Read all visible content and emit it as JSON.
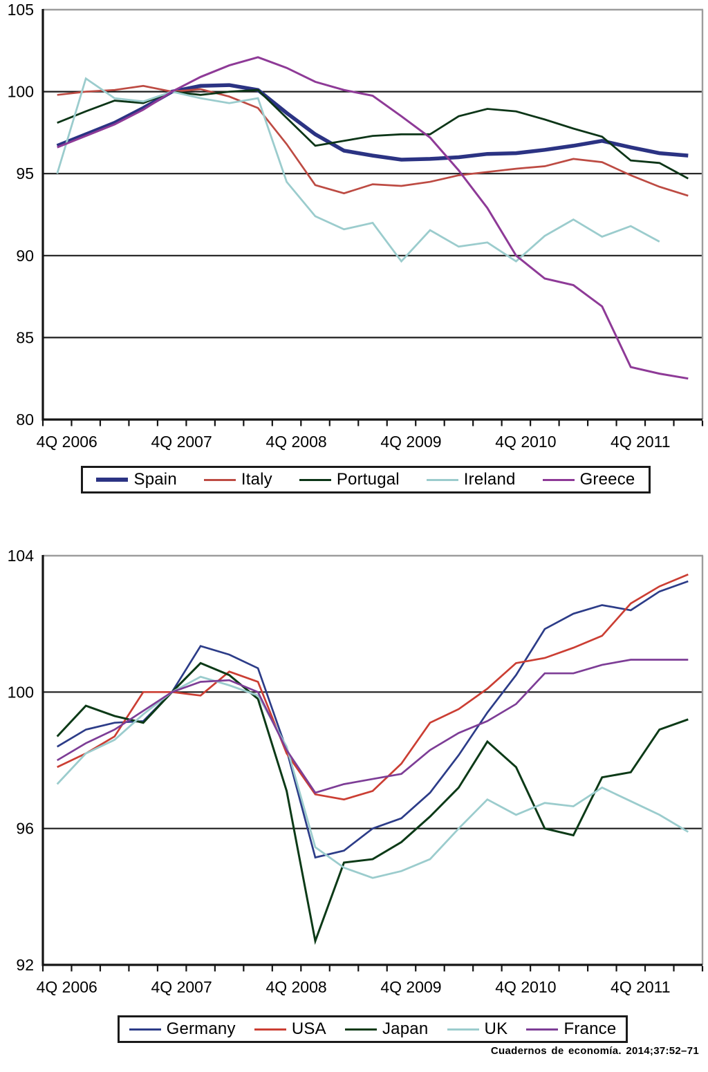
{
  "citation": "Cuadernos de economía. 2014;37:52–71",
  "colors": {
    "gridline": "#1c1c1c",
    "axis": "#141414",
    "chart_border": "#9c9c9c",
    "text": "#000000"
  },
  "chart_data": [
    {
      "id": "top",
      "type": "line",
      "title": "",
      "xlabel": "",
      "ylabel": "",
      "grid": "horizontal",
      "legend_position": "bottom",
      "categories": [
        "4Q 2006",
        "1Q 2007",
        "2Q 2007",
        "3Q 2007",
        "4Q 2007",
        "1Q 2008",
        "2Q 2008",
        "3Q 2008",
        "4Q 2008",
        "1Q 2009",
        "2Q 2009",
        "3Q 2009",
        "4Q 2009",
        "1Q 2010",
        "2Q 2010",
        "3Q 2010",
        "4Q 2010",
        "1Q 2011",
        "2Q 2011",
        "3Q 2011",
        "4Q 2011",
        "1Q 2012",
        "2Q 2012"
      ],
      "x_tick_labels": [
        "4Q 2006",
        "4Q 2007",
        "4Q 2008",
        "4Q 2009",
        "4Q 2010",
        "4Q 2011"
      ],
      "x_tick_label_points": [
        0,
        4,
        8,
        12,
        16,
        20
      ],
      "ylim": [
        80,
        105
      ],
      "y_ticks": [
        105,
        100,
        95,
        90,
        85,
        80
      ],
      "y_gridlines": [
        100,
        95,
        90,
        85
      ],
      "series": [
        {
          "name": "Spain",
          "color": "#2b3383",
          "width": 5.5,
          "values": [
            96.7,
            97.4,
            98.1,
            99.0,
            100.0,
            100.35,
            100.4,
            100.1,
            98.7,
            97.4,
            96.4,
            96.1,
            95.85,
            95.9,
            96.0,
            96.2,
            96.25,
            96.45,
            96.7,
            97.0,
            96.6,
            96.25,
            96.1
          ]
        },
        {
          "name": "Italy",
          "color": "#bd4b43",
          "width": 2.7,
          "values": [
            99.8,
            100.0,
            100.1,
            100.35,
            100.0,
            100.15,
            99.7,
            99.0,
            96.8,
            94.3,
            93.8,
            94.35,
            94.25,
            94.5,
            94.9,
            95.1,
            95.3,
            95.45,
            95.9,
            95.7,
            94.9,
            94.2,
            93.65
          ]
        },
        {
          "name": "Portugal",
          "color": "#0c3517",
          "width": 2.8,
          "values": [
            98.1,
            98.8,
            99.45,
            99.3,
            100.0,
            99.8,
            100.0,
            100.1,
            98.4,
            96.7,
            97.0,
            97.3,
            97.4,
            97.4,
            98.5,
            98.95,
            98.8,
            98.3,
            97.75,
            97.25,
            95.8,
            95.65,
            94.7
          ]
        },
        {
          "name": "Ireland",
          "color": "#9bcccd",
          "width": 2.8,
          "values": [
            95.0,
            100.8,
            99.6,
            99.4,
            100.0,
            99.6,
            99.3,
            99.6,
            94.5,
            92.4,
            91.6,
            92.0,
            89.65,
            91.55,
            90.55,
            90.8,
            89.65,
            91.2,
            92.2,
            91.15,
            91.8,
            90.85,
            null
          ]
        },
        {
          "name": "Greece",
          "color": "#8e3a97",
          "width": 3.0,
          "values": [
            96.6,
            97.3,
            98.0,
            98.9,
            100.0,
            100.9,
            101.6,
            102.1,
            101.45,
            100.6,
            100.1,
            99.75,
            98.5,
            97.2,
            95.2,
            92.9,
            90.0,
            88.6,
            88.2,
            86.9,
            83.2,
            82.8,
            82.5
          ]
        }
      ]
    },
    {
      "id": "bottom",
      "type": "line",
      "title": "",
      "xlabel": "",
      "ylabel": "",
      "grid": "horizontal",
      "legend_position": "bottom",
      "categories": [
        "4Q 2006",
        "1Q 2007",
        "2Q 2007",
        "3Q 2007",
        "4Q 2007",
        "1Q 2008",
        "2Q 2008",
        "3Q 2008",
        "4Q 2008",
        "1Q 2009",
        "2Q 2009",
        "3Q 2009",
        "4Q 2009",
        "1Q 2010",
        "2Q 2010",
        "3Q 2010",
        "4Q 2010",
        "1Q 2011",
        "2Q 2011",
        "3Q 2011",
        "4Q 2011",
        "1Q 2012",
        "2Q 2012"
      ],
      "x_tick_labels": [
        "4Q 2006",
        "4Q 2007",
        "4Q 2008",
        "4Q 2009",
        "4Q 2010",
        "4Q 2011"
      ],
      "x_tick_label_points": [
        0,
        4,
        8,
        12,
        16,
        20
      ],
      "ylim": [
        92,
        104
      ],
      "y_ticks": [
        104,
        100,
        96,
        92
      ],
      "y_gridlines": [
        100,
        96
      ],
      "series": [
        {
          "name": "Germany",
          "color": "#2c3c88",
          "width": 2.7,
          "values": [
            98.4,
            98.9,
            99.1,
            99.15,
            100.0,
            101.35,
            101.1,
            100.7,
            98.3,
            95.15,
            95.35,
            96.0,
            96.3,
            97.05,
            98.15,
            99.4,
            100.5,
            101.85,
            102.3,
            102.55,
            102.4,
            102.95,
            103.25
          ]
        },
        {
          "name": "USA",
          "color": "#cb3e33",
          "width": 2.7,
          "values": [
            97.8,
            98.2,
            98.7,
            100.0,
            100.0,
            99.9,
            100.6,
            100.3,
            98.2,
            97.0,
            96.85,
            97.1,
            97.9,
            99.1,
            99.5,
            100.1,
            100.85,
            101.0,
            101.3,
            101.65,
            102.6,
            103.1,
            103.45
          ]
        },
        {
          "name": "Japan",
          "color": "#0c3a17",
          "width": 3.0,
          "values": [
            98.7,
            99.6,
            99.3,
            99.1,
            100.0,
            100.85,
            100.5,
            99.8,
            97.1,
            92.7,
            95.0,
            95.1,
            95.6,
            96.35,
            97.2,
            98.55,
            97.8,
            96.0,
            95.8,
            97.5,
            97.65,
            98.9,
            99.2
          ]
        },
        {
          "name": "UK",
          "color": "#9bcccd",
          "width": 2.8,
          "values": [
            97.3,
            98.2,
            98.6,
            99.35,
            100.0,
            100.45,
            100.2,
            99.9,
            98.4,
            95.45,
            94.85,
            94.55,
            94.75,
            95.1,
            96.0,
            96.85,
            96.4,
            96.75,
            96.65,
            97.2,
            96.8,
            96.4,
            95.9
          ]
        },
        {
          "name": "France",
          "color": "#7d3d96",
          "width": 2.7,
          "values": [
            98.0,
            98.5,
            98.9,
            99.45,
            100.0,
            100.3,
            100.35,
            100.0,
            98.3,
            97.05,
            97.3,
            97.45,
            97.6,
            98.3,
            98.8,
            99.15,
            99.65,
            100.55,
            100.55,
            100.8,
            100.95,
            100.95,
            100.95
          ]
        }
      ]
    }
  ]
}
